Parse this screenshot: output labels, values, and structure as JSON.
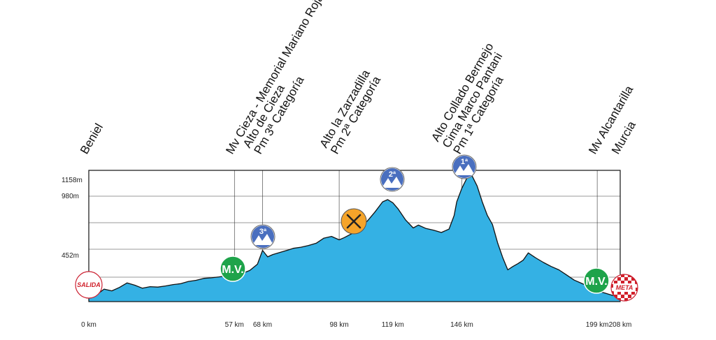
{
  "colors": {
    "profile_fill": "#34b1e4",
    "profile_stroke": "#111111",
    "grid": "#333333",
    "mountain_badge": "#4a6fbf",
    "sprint_badge": "#1ea34a",
    "feed_badge": "#f5a42a",
    "start_finish_text": "#d0202a"
  },
  "chart_data": {
    "type": "area",
    "title": "",
    "xlabel": "",
    "ylabel": "",
    "xlim": [
      0,
      208
    ],
    "ylim": [
      0,
      1158
    ],
    "grid": "horizontal",
    "y_ticks": [
      {
        "value": 1158,
        "label": "1158m"
      },
      {
        "value": 980,
        "label": "980m"
      },
      {
        "value": 452,
        "label": "452m"
      }
    ],
    "x_ticks": [
      {
        "value": 0,
        "label": "0 km"
      },
      {
        "value": 57,
        "label": "57 km"
      },
      {
        "value": 68,
        "label": "68 km"
      },
      {
        "value": 98,
        "label": "98 km"
      },
      {
        "value": 119,
        "label": "119 km"
      },
      {
        "value": 146,
        "label": "146 km"
      },
      {
        "value": 199,
        "label": "199 km"
      },
      {
        "value": 208,
        "label": "208 km"
      }
    ],
    "series": [
      {
        "x": [
          0,
          3,
          6,
          9,
          12,
          15,
          18,
          21,
          24,
          27,
          30,
          33,
          36,
          39,
          42,
          45,
          48,
          51,
          54,
          57,
          60,
          63,
          66,
          68,
          70,
          72,
          75,
          78,
          80,
          83,
          86,
          89,
          92,
          95,
          98,
          100,
          103,
          106,
          109,
          112,
          115,
          117,
          119,
          121,
          124,
          127,
          129,
          132,
          135,
          138,
          141,
          143,
          144,
          146,
          148,
          150,
          152,
          154,
          156,
          158,
          160,
          162,
          164,
          166,
          168,
          170,
          172,
          175,
          178,
          181,
          184,
          187,
          190,
          193,
          196,
          199,
          202,
          205,
          208
        ],
        "y": [
          70,
          60,
          110,
          95,
          125,
          165,
          145,
          118,
          132,
          128,
          138,
          150,
          158,
          178,
          188,
          205,
          210,
          218,
          228,
          245,
          248,
          275,
          330,
          452,
          395,
          415,
          435,
          455,
          470,
          480,
          495,
          515,
          560,
          575,
          545,
          565,
          600,
          655,
          710,
          790,
          880,
          900,
          872,
          820,
          720,
          650,
          675,
          645,
          630,
          610,
          640,
          760,
          880,
          1000,
          1090,
          1110,
          1020,
          880,
          760,
          680,
          520,
          390,
          280,
          310,
          335,
          365,
          430,
          385,
          345,
          310,
          280,
          235,
          190,
          160,
          130,
          95,
          75,
          55,
          50
        ]
      }
    ]
  },
  "places": [
    {
      "km": 0,
      "lines": [
        "Beniel"
      ],
      "gridline": false
    },
    {
      "km": 57,
      "lines": [
        "Mv Cieza - Memorial Mariano Rojas"
      ],
      "gridline": true
    },
    {
      "km": 68,
      "lines": [
        "Alto de Cieza",
        "Pm 3ª Categoría"
      ],
      "gridline": true
    },
    {
      "km": 98,
      "lines": [
        "Alto la Zarzadilla",
        "Pm 2ª Categoría"
      ],
      "gridline": true
    },
    {
      "km": 146,
      "lines": [
        "Alto Collado Bermejo",
        "Cima Marco Pantani",
        "Pm 1ª Categoría"
      ],
      "gridline": true
    },
    {
      "km": 199,
      "lines": [
        "Mv Alcantarilla"
      ],
      "gridline": true
    },
    {
      "km": 208,
      "lines": [
        "Murcia"
      ],
      "gridline": false
    }
  ],
  "badges": [
    {
      "type": "start",
      "km": 0,
      "alt": 160,
      "text": "SALIDA",
      "name": "salida-badge"
    },
    {
      "type": "sprint",
      "km": 57,
      "alt": 310,
      "text": "M.V.",
      "name": "sprint-badge-cieza"
    },
    {
      "type": "mountain",
      "km": 68,
      "alt": 600,
      "text": "3ª",
      "name": "mountain-badge-3"
    },
    {
      "type": "feed",
      "km": 98,
      "alt": 680,
      "text": "",
      "name": "feed-zone-icon"
    },
    {
      "type": "mountain",
      "km": 119,
      "alt": 1020,
      "text": "2ª",
      "name": "mountain-badge-2"
    },
    {
      "type": "mountain",
      "km": 146,
      "alt": 1150,
      "text": "1ª",
      "name": "mountain-badge-1"
    },
    {
      "type": "sprint",
      "km": 199,
      "alt": 220,
      "text": "M.V.",
      "name": "sprint-badge-alcantarilla"
    },
    {
      "type": "finish",
      "km": 208,
      "alt": 160,
      "text": "META",
      "name": "meta-badge"
    }
  ]
}
